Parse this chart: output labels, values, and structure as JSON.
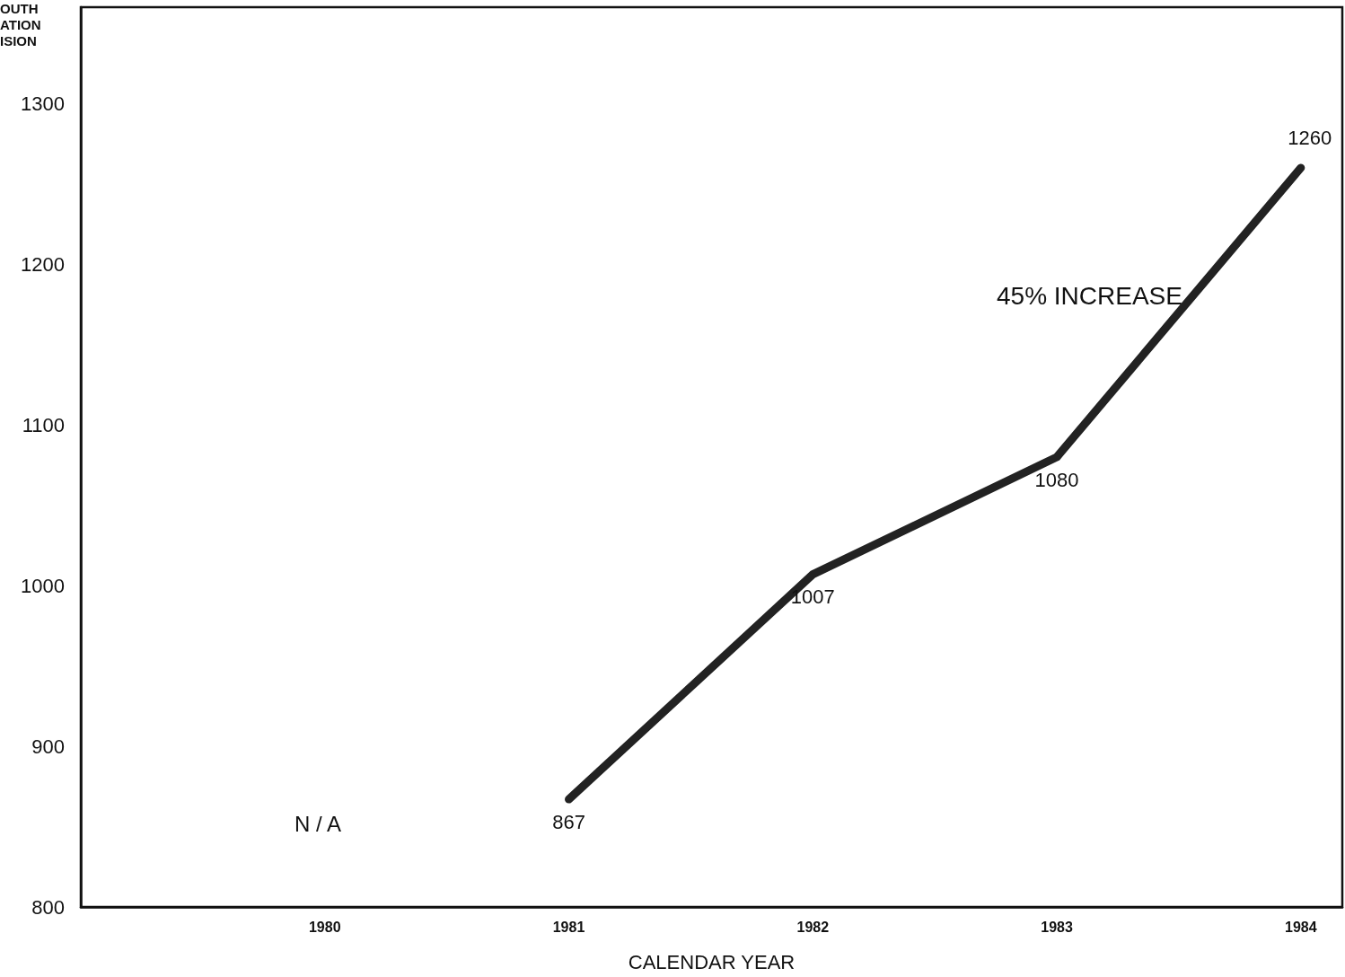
{
  "chart_data": {
    "type": "line",
    "ylabel": "OUTH\nATION\nISION",
    "xlabel": "CALENDAR YEAR",
    "x": [
      1981,
      1982,
      1983,
      1984
    ],
    "series": [
      {
        "color": "#222222",
        "values": [
          867,
          1007,
          1080,
          1260
        ]
      }
    ],
    "xlim": [
      1979,
      1984.17
    ],
    "xticks": [
      1980,
      1981,
      1982,
      1983,
      1984
    ],
    "ylim": [
      800,
      1360
    ],
    "yticks": [
      800,
      900,
      1000,
      1100,
      1200,
      1300
    ],
    "data_labels": true,
    "marker": "none",
    "line_style": "solid",
    "grid": false,
    "annotations": [
      "45% INCREASE",
      "N / A"
    ]
  }
}
